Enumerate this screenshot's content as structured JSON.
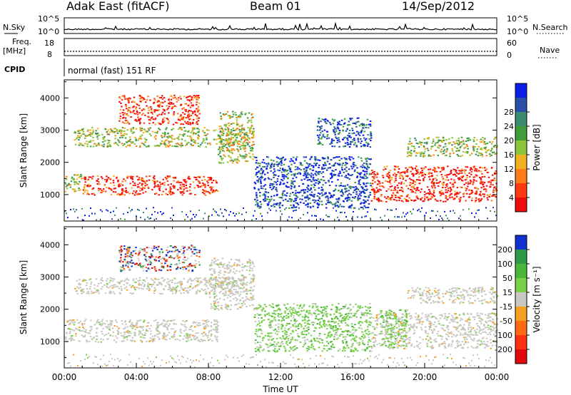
{
  "header": {
    "station": "Adak East (fitACF)",
    "beam": "Beam 01",
    "date": "14/Sep/2012"
  },
  "params": {
    "nsky_label": "N.Sky",
    "nsearch_label": "N.Search",
    "nsky_ticks": [
      "10^5",
      "10^0"
    ],
    "nsearch_ticks": [
      "10^5",
      "10^0"
    ],
    "freq_label_1": "Freq.",
    "freq_label_2": "[MHz]",
    "freq_ticks": [
      "18",
      "8"
    ],
    "nave_label": "Nave",
    "nave_ticks": [
      "60",
      "0"
    ],
    "cpid_label": "CPID",
    "cpid_value": "normal (fast) 151 RF"
  },
  "chart_data": [
    {
      "type": "heatmap",
      "name": "power",
      "ylabel": "Slant Range [km]",
      "xlabel": "",
      "xlim": [
        0,
        24
      ],
      "ylim": [
        180,
        4560
      ],
      "yticks": [
        1000,
        2000,
        3000,
        4000
      ],
      "colorbar": {
        "label": "Power [dB]",
        "ticks": [
          "4",
          "8",
          "12",
          "16",
          "20",
          "24",
          "28"
        ],
        "colors": [
          "#0b1ee6",
          "#2a4fa8",
          "#3b8c6e",
          "#3f9e3a",
          "#8cc43a",
          "#f0b020",
          "#ff7a18",
          "#ff3a10",
          "#ef0c0c"
        ]
      },
      "regions": [
        {
          "t": [
            0.0,
            1.0
          ],
          "r": [
            1100,
            1650
          ],
          "level": "mid"
        },
        {
          "t": [
            1.0,
            8.5
          ],
          "r": [
            1000,
            1600
          ],
          "level": "high"
        },
        {
          "t": [
            3.0,
            7.5
          ],
          "r": [
            3200,
            4100
          ],
          "level": "high"
        },
        {
          "t": [
            0.5,
            10.5
          ],
          "r": [
            2500,
            3100
          ],
          "level": "mid"
        },
        {
          "t": [
            8.5,
            10.5
          ],
          "r": [
            2000,
            3600
          ],
          "level": "mid"
        },
        {
          "t": [
            10.5,
            17.0
          ],
          "r": [
            600,
            2200
          ],
          "level": "low"
        },
        {
          "t": [
            14.0,
            17.0
          ],
          "r": [
            2500,
            3400
          ],
          "level": "low"
        },
        {
          "t": [
            17.0,
            24.0
          ],
          "r": [
            800,
            1900
          ],
          "level": "high"
        },
        {
          "t": [
            19.0,
            24.0
          ],
          "r": [
            2200,
            2800
          ],
          "level": "mid"
        }
      ]
    },
    {
      "type": "heatmap",
      "name": "velocity",
      "ylabel": "Slant Range [km]",
      "xlabel": "Time UT",
      "xlim": [
        0,
        24
      ],
      "ylim": [
        180,
        4560
      ],
      "yticks": [
        1000,
        2000,
        3000,
        4000
      ],
      "xticks": [
        "00:00",
        "04:00",
        "08:00",
        "12:00",
        "16:00",
        "20:00",
        "00:00"
      ],
      "colorbar": {
        "label": "Velocity [m s⁻¹]",
        "ticks": [
          "200",
          "100",
          "50",
          "15",
          "-15",
          "-50",
          "-100",
          "-200"
        ],
        "colors": [
          "#1030d0",
          "#2e9a45",
          "#48b73a",
          "#7ad04a",
          "#c8c8c0",
          "#f5a020",
          "#ff6a12",
          "#ff3010",
          "#e00a0a"
        ]
      },
      "regions": [
        {
          "t": [
            0.0,
            8.5
          ],
          "r": [
            1000,
            1700
          ],
          "level": "ground"
        },
        {
          "t": [
            3.0,
            7.5
          ],
          "r": [
            3200,
            4000
          ],
          "level": "mixed"
        },
        {
          "t": [
            0.5,
            10.5
          ],
          "r": [
            2500,
            3000
          ],
          "level": "ground"
        },
        {
          "t": [
            8.0,
            10.5
          ],
          "r": [
            2000,
            3600
          ],
          "level": "ground"
        },
        {
          "t": [
            10.5,
            17.0
          ],
          "r": [
            700,
            2200
          ],
          "level": "green"
        },
        {
          "t": [
            17.0,
            24.0
          ],
          "r": [
            800,
            1900
          ],
          "level": "ground"
        },
        {
          "t": [
            17.5,
            19.0
          ],
          "r": [
            800,
            2000
          ],
          "level": "green"
        },
        {
          "t": [
            19.0,
            24.0
          ],
          "r": [
            2200,
            2700
          ],
          "level": "ground"
        }
      ]
    }
  ],
  "colors": {
    "axis": "#000000",
    "background": "#ffffff"
  }
}
